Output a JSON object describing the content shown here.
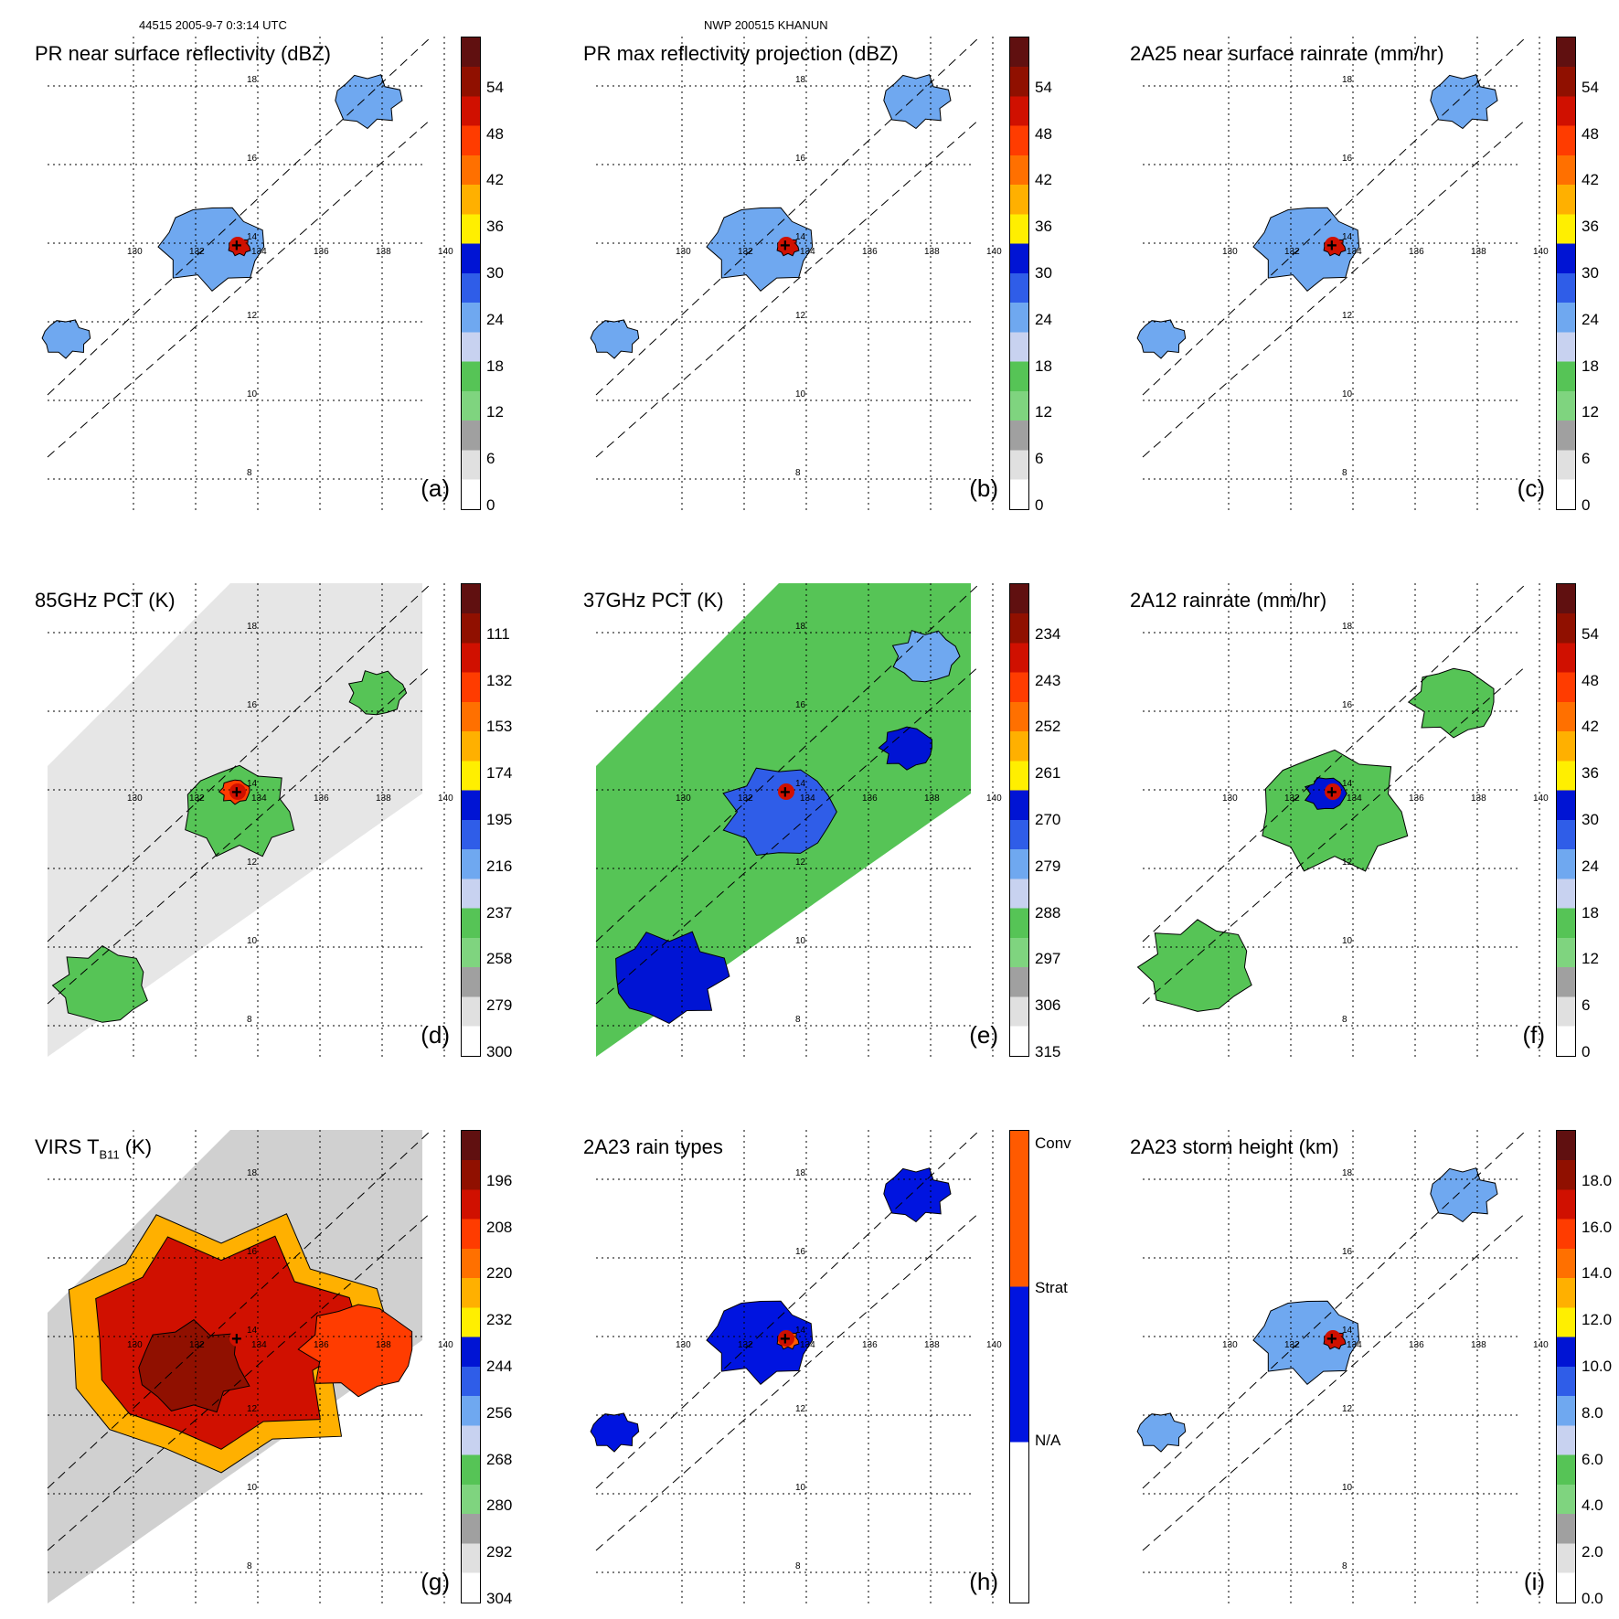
{
  "header": {
    "left": "44515 2005-9-7 0:3:14 UTC",
    "center": "NWP 200515 KHANUN"
  },
  "grid": {
    "lons": [
      "130",
      "132",
      "134",
      "136",
      "138",
      "140"
    ],
    "lats": [
      "18",
      "16",
      "14",
      "12",
      "10",
      "8"
    ]
  },
  "colors": {
    "scale": [
      "#ffffff",
      "#e0e0e0",
      "#a0a0a0",
      "#7fd47f",
      "#56c456",
      "#c8d2f0",
      "#6fa8f0",
      "#2f5de8",
      "#0014d4",
      "#ffef00",
      "#ffb000",
      "#ff7000",
      "#ff3c00",
      "#d01000",
      "#901000",
      "#601010"
    ],
    "rtype": [
      "#ffffff",
      "#0014e0",
      "#ff5a00"
    ]
  },
  "panels": [
    {
      "id": "a",
      "title": "PR near surface reflectivity (dBZ)",
      "label": "(a)",
      "ticks": [
        "54",
        "48",
        "42",
        "36",
        "30",
        "24",
        "18",
        "12",
        "6",
        "0"
      ],
      "kind": "swath"
    },
    {
      "id": "b",
      "title": "PR max reflectivity projection (dBZ)",
      "label": "(b)",
      "ticks": [
        "54",
        "48",
        "42",
        "36",
        "30",
        "24",
        "18",
        "12",
        "6",
        "0"
      ],
      "kind": "swath"
    },
    {
      "id": "c",
      "title": "2A25 near surface rainrate (mm/hr)",
      "label": "(c)",
      "ticks": [
        "54",
        "48",
        "42",
        "36",
        "30",
        "24",
        "18",
        "12",
        "6",
        "0"
      ],
      "kind": "swath"
    },
    {
      "id": "d",
      "title": "85GHz PCT (K)",
      "label": "(d)",
      "ticks": [
        "111",
        "132",
        "153",
        "174",
        "195",
        "216",
        "237",
        "258",
        "279",
        "300"
      ],
      "kind": "wide-gray"
    },
    {
      "id": "e",
      "title": "37GHz PCT (K)",
      "label": "(e)",
      "ticks": [
        "234",
        "243",
        "252",
        "261",
        "270",
        "279",
        "288",
        "297",
        "306",
        "315"
      ],
      "kind": "wide-green"
    },
    {
      "id": "f",
      "title": "2A12 rainrate (mm/hr)",
      "label": "(f)",
      "ticks": [
        "54",
        "48",
        "42",
        "36",
        "30",
        "24",
        "18",
        "12",
        "6",
        "0"
      ],
      "kind": "wide-rain"
    },
    {
      "id": "g",
      "title_main": "VIRS T",
      "title_sub": "B11",
      "title_unit": " (K)",
      "label": "(g)",
      "ticks": [
        "196",
        "208",
        "220",
        "232",
        "244",
        "256",
        "268",
        "280",
        "292",
        "304"
      ],
      "kind": "wide-ir"
    },
    {
      "id": "h",
      "title": "2A23 rain types",
      "label": "(h)",
      "ticks": [
        "Conv",
        "Strat",
        "N/A"
      ],
      "kind": "swath-type"
    },
    {
      "id": "i",
      "title": "2A23 storm height (km)",
      "label": "(i)",
      "ticks": [
        "18.0",
        "16.0",
        "14.0",
        "12.0",
        "10.0",
        "8.0",
        "6.0",
        "4.0",
        "2.0",
        "0.0"
      ],
      "kind": "swath"
    }
  ]
}
